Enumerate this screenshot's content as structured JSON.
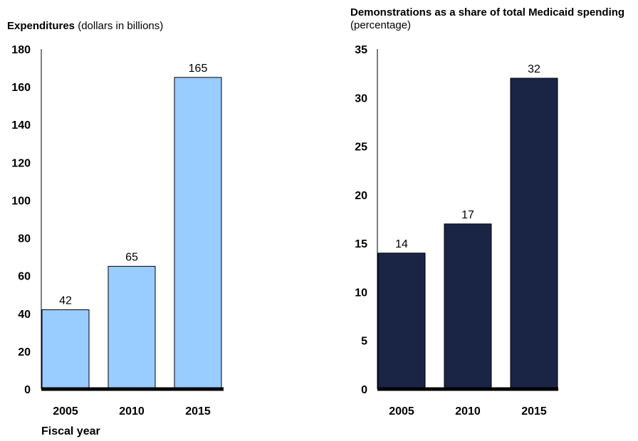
{
  "chart_data": [
    {
      "type": "bar",
      "title_bold": "Expenditures",
      "title_rest": " (dollars in billions)",
      "categories": [
        "2005",
        "2010",
        "2015"
      ],
      "values": [
        42,
        65,
        165
      ],
      "ylim": [
        0,
        180
      ],
      "yticks": [
        "0",
        "20",
        "40",
        "60",
        "80",
        "100",
        "120",
        "140",
        "160",
        "180"
      ],
      "xlabel": "Fiscal year",
      "bar_color": "#99ccff",
      "grid": false
    },
    {
      "type": "bar",
      "title_bold": "Demonstrations as a share of total Medicaid spending",
      "title_rest": " (percentage)",
      "categories": [
        "2005",
        "2010",
        "2015"
      ],
      "values": [
        14,
        17,
        32
      ],
      "ylim": [
        0,
        35
      ],
      "yticks": [
        "0",
        "5",
        "10",
        "15",
        "20",
        "25",
        "30",
        "35"
      ],
      "xlabel": "",
      "bar_color": "#1a2546",
      "grid": false
    }
  ]
}
